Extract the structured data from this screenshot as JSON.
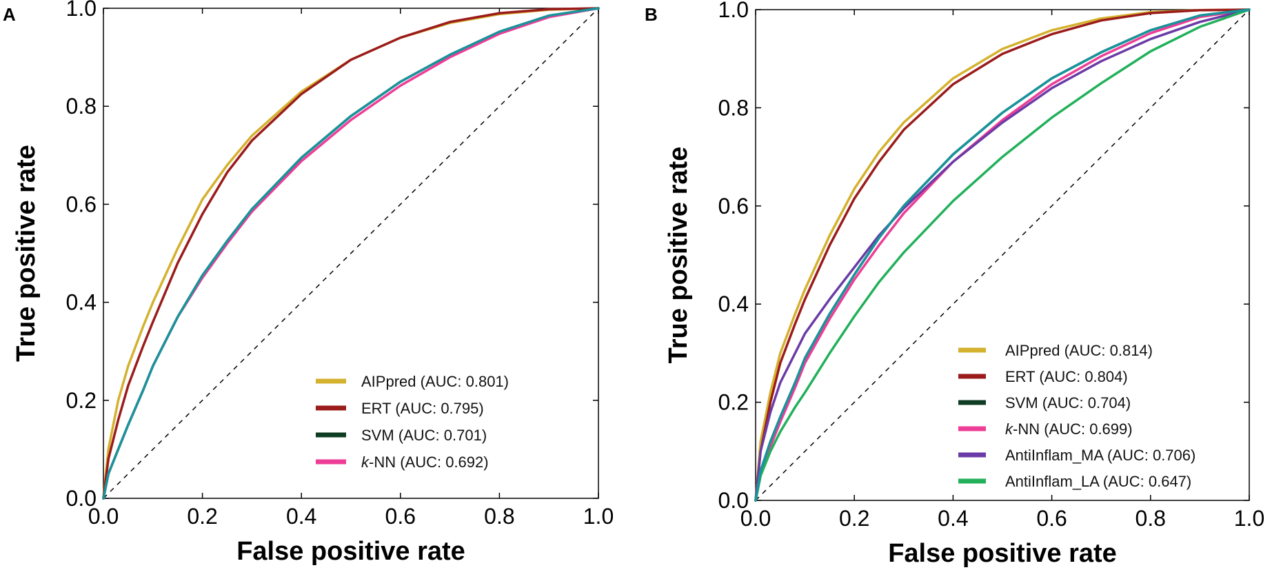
{
  "chart_data": [
    {
      "type": "line",
      "panel_label": "A",
      "xlabel": "False positive rate",
      "ylabel": "True positive rate",
      "xlim": [
        0.0,
        1.0
      ],
      "ylim": [
        0.0,
        1.0
      ],
      "x_ticks": [
        "0.0",
        "0.2",
        "0.4",
        "0.6",
        "0.8",
        "1.0"
      ],
      "y_ticks": [
        "0.0",
        "0.2",
        "0.4",
        "0.6",
        "0.8",
        "1.0"
      ],
      "grid": false,
      "legend_position": "bottom-right",
      "diagonal": "dashed",
      "series": [
        {
          "name": "AIPpred",
          "legend_label": "AIPpred (AUC: 0.801)",
          "color": "#D4B12E",
          "x": [
            0,
            0.01,
            0.03,
            0.05,
            0.08,
            0.1,
            0.15,
            0.2,
            0.25,
            0.3,
            0.4,
            0.5,
            0.6,
            0.7,
            0.8,
            0.9,
            1.0
          ],
          "y": [
            0,
            0.1,
            0.2,
            0.27,
            0.35,
            0.4,
            0.51,
            0.61,
            0.68,
            0.74,
            0.83,
            0.895,
            0.94,
            0.97,
            0.988,
            0.997,
            1.0
          ]
        },
        {
          "name": "ERT",
          "legend_label": "ERT (AUC: 0.795)",
          "color": "#9B1B1B",
          "x": [
            0,
            0.01,
            0.03,
            0.05,
            0.08,
            0.1,
            0.15,
            0.2,
            0.25,
            0.3,
            0.4,
            0.5,
            0.6,
            0.7,
            0.8,
            0.9,
            1.0
          ],
          "y": [
            0,
            0.08,
            0.16,
            0.23,
            0.31,
            0.36,
            0.48,
            0.58,
            0.665,
            0.73,
            0.825,
            0.895,
            0.94,
            0.972,
            0.99,
            0.998,
            1.0
          ]
        },
        {
          "name": "SVM",
          "legend_label": "SVM (AUC: 0.701)",
          "color": "#0F3D24",
          "x": [
            0,
            0.01,
            0.03,
            0.05,
            0.08,
            0.1,
            0.15,
            0.2,
            0.25,
            0.3,
            0.4,
            0.5,
            0.6,
            0.7,
            0.8,
            0.9,
            1.0
          ],
          "y": [
            0,
            0.05,
            0.1,
            0.15,
            0.22,
            0.27,
            0.37,
            0.455,
            0.525,
            0.59,
            0.695,
            0.78,
            0.85,
            0.905,
            0.952,
            0.985,
            1.0
          ]
        },
        {
          "name": "k-NN",
          "legend_label": "k-NN (AUC: 0.692)",
          "legend_italic": "k",
          "legend_rest": "-NN (AUC: 0.692)",
          "color": "#EE3D96",
          "x": [
            0,
            0.01,
            0.03,
            0.05,
            0.08,
            0.1,
            0.15,
            0.2,
            0.25,
            0.3,
            0.4,
            0.5,
            0.6,
            0.7,
            0.8,
            0.9,
            1.0
          ],
          "y": [
            0,
            0.05,
            0.1,
            0.15,
            0.22,
            0.27,
            0.37,
            0.45,
            0.52,
            0.585,
            0.688,
            0.772,
            0.842,
            0.9,
            0.948,
            0.982,
            1.0
          ]
        },
        {
          "name": "overlay",
          "color": "#18949C",
          "in_legend": false,
          "x": [
            0,
            0.01,
            0.03,
            0.05,
            0.08,
            0.1,
            0.15,
            0.2,
            0.25,
            0.3,
            0.4,
            0.5,
            0.6,
            0.7,
            0.8,
            0.9,
            1.0
          ],
          "y": [
            0,
            0.05,
            0.1,
            0.15,
            0.22,
            0.27,
            0.37,
            0.455,
            0.525,
            0.59,
            0.695,
            0.78,
            0.85,
            0.905,
            0.952,
            0.985,
            1.0
          ]
        }
      ]
    },
    {
      "type": "line",
      "panel_label": "B",
      "xlabel": "False positive rate",
      "ylabel": "True positive rate",
      "xlim": [
        0.0,
        1.0
      ],
      "ylim": [
        0.0,
        1.0
      ],
      "x_ticks": [
        "0.0",
        "0.2",
        "0.4",
        "0.6",
        "0.8",
        "1.0"
      ],
      "y_ticks": [
        "0.0",
        "0.2",
        "0.4",
        "0.6",
        "0.8",
        "1.0"
      ],
      "grid": false,
      "legend_position": "bottom-right",
      "diagonal": "dashed",
      "series": [
        {
          "name": "AIPpred",
          "legend_label": "AIPpred (AUC: 0.814)",
          "color": "#D4B12E",
          "x": [
            0,
            0.01,
            0.03,
            0.05,
            0.08,
            0.1,
            0.15,
            0.2,
            0.25,
            0.3,
            0.4,
            0.5,
            0.6,
            0.7,
            0.8,
            0.9,
            1.0
          ],
          "y": [
            0,
            0.12,
            0.22,
            0.3,
            0.38,
            0.43,
            0.54,
            0.635,
            0.71,
            0.77,
            0.86,
            0.92,
            0.958,
            0.982,
            0.995,
            0.999,
            1.0
          ]
        },
        {
          "name": "ERT",
          "legend_label": "ERT (AUC: 0.804)",
          "color": "#9B1B1B",
          "x": [
            0,
            0.01,
            0.03,
            0.05,
            0.08,
            0.1,
            0.15,
            0.2,
            0.25,
            0.3,
            0.4,
            0.5,
            0.6,
            0.7,
            0.8,
            0.9,
            1.0
          ],
          "y": [
            0,
            0.1,
            0.2,
            0.28,
            0.36,
            0.41,
            0.52,
            0.615,
            0.69,
            0.755,
            0.848,
            0.91,
            0.95,
            0.978,
            0.993,
            0.999,
            1.0
          ]
        },
        {
          "name": "SVM",
          "legend_label": "SVM (AUC: 0.704)",
          "color": "#0F3D24",
          "x": [
            0,
            0.01,
            0.03,
            0.05,
            0.08,
            0.1,
            0.15,
            0.2,
            0.25,
            0.3,
            0.4,
            0.5,
            0.6,
            0.7,
            0.8,
            0.9,
            1.0
          ],
          "y": [
            0,
            0.06,
            0.12,
            0.17,
            0.24,
            0.29,
            0.38,
            0.46,
            0.535,
            0.6,
            0.705,
            0.79,
            0.86,
            0.913,
            0.958,
            0.988,
            1.0
          ]
        },
        {
          "name": "k-NN",
          "legend_label": "k-NN (AUC: 0.699)",
          "legend_italic": "k",
          "legend_rest": "-NN (AUC: 0.699)",
          "color": "#EE3D96",
          "x": [
            0,
            0.01,
            0.03,
            0.05,
            0.08,
            0.1,
            0.15,
            0.2,
            0.25,
            0.3,
            0.4,
            0.5,
            0.6,
            0.7,
            0.8,
            0.9,
            1.0
          ],
          "y": [
            0,
            0.05,
            0.11,
            0.16,
            0.23,
            0.28,
            0.37,
            0.45,
            0.52,
            0.585,
            0.69,
            0.775,
            0.848,
            0.905,
            0.952,
            0.985,
            1.0
          ]
        },
        {
          "name": "AntiInflam_MA",
          "legend_label": "AntiInflam_MA (AUC: 0.706)",
          "color": "#6A3BA6",
          "x": [
            0,
            0.01,
            0.03,
            0.05,
            0.08,
            0.1,
            0.15,
            0.2,
            0.25,
            0.3,
            0.4,
            0.5,
            0.6,
            0.7,
            0.8,
            0.9,
            1.0
          ],
          "y": [
            0,
            0.1,
            0.18,
            0.24,
            0.3,
            0.34,
            0.41,
            0.475,
            0.54,
            0.595,
            0.69,
            0.77,
            0.84,
            0.895,
            0.94,
            0.975,
            1.0
          ]
        },
        {
          "name": "AntiInflam_LA",
          "legend_label": "AntiInflam_LA (AUC: 0.647)",
          "color": "#22B05A",
          "x": [
            0,
            0.01,
            0.03,
            0.05,
            0.08,
            0.1,
            0.15,
            0.2,
            0.25,
            0.3,
            0.4,
            0.5,
            0.6,
            0.7,
            0.8,
            0.9,
            1.0
          ],
          "y": [
            0,
            0.05,
            0.1,
            0.14,
            0.19,
            0.22,
            0.3,
            0.375,
            0.445,
            0.505,
            0.61,
            0.7,
            0.78,
            0.85,
            0.915,
            0.965,
            1.0
          ]
        },
        {
          "name": "overlay",
          "color": "#18949C",
          "in_legend": false,
          "x": [
            0,
            0.01,
            0.03,
            0.05,
            0.08,
            0.1,
            0.15,
            0.2,
            0.25,
            0.3,
            0.4,
            0.5,
            0.6,
            0.7,
            0.8,
            0.9,
            1.0
          ],
          "y": [
            0,
            0.06,
            0.12,
            0.17,
            0.24,
            0.29,
            0.38,
            0.46,
            0.535,
            0.6,
            0.705,
            0.79,
            0.86,
            0.913,
            0.958,
            0.988,
            1.0
          ]
        }
      ]
    }
  ]
}
